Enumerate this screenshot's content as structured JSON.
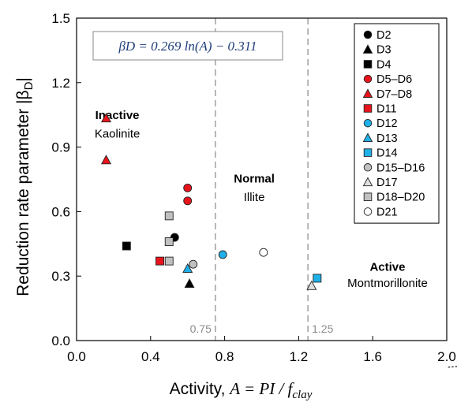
{
  "chart_data": {
    "type": "scatter",
    "xlim": [
      0,
      2.0
    ],
    "ylim": [
      0,
      1.5
    ],
    "x_ticks": [
      "0.0",
      "0.4",
      "0.8",
      "1.2",
      "1.6",
      "2.0"
    ],
    "y_ticks": [
      "0.0",
      "0.3",
      "0.6",
      "0.9",
      "1.2",
      "1.5"
    ],
    "xlabel_prefix": "Activity, ",
    "xlabel_math": "A = PI / f",
    "xlabel_sub": "clay",
    "ylabel_prefix": "Reduction rate parameter |β",
    "ylabel_sub": "D",
    "ylabel_suffix": "|",
    "equation": "βD = 0.269 ln(A) − 0.311",
    "fit": {
      "a": 0.269,
      "b": -0.311
    },
    "vlines": [
      {
        "x": 0.75,
        "label": "0.75"
      },
      {
        "x": 1.25,
        "label": "1.25"
      }
    ],
    "regions": [
      {
        "bold": "Inactive",
        "normal": "Kaolinite",
        "x": 0.22,
        "y_bold": 1.03,
        "y_normal": 0.945
      },
      {
        "bold": "Normal",
        "normal": "Illite",
        "x": 0.96,
        "y_bold": 0.735,
        "y_normal": 0.65
      },
      {
        "bold": "Active",
        "normal": "Montmorillonite",
        "x": 1.68,
        "y_bold": 0.325,
        "y_normal": 0.25
      }
    ],
    "series": [
      {
        "name": "D2",
        "marker": "circle",
        "color": "#000000",
        "points": [
          [
            0.53,
            0.48
          ]
        ]
      },
      {
        "name": "D3",
        "marker": "triangle",
        "color": "#000000",
        "points": [
          [
            0.61,
            0.265
          ]
        ]
      },
      {
        "name": "D4",
        "marker": "square",
        "color": "#000000",
        "points": [
          [
            0.27,
            0.44
          ]
        ]
      },
      {
        "name": "D5–D6",
        "marker": "circle",
        "color": "#e8141c",
        "points": [
          [
            0.6,
            0.71
          ],
          [
            0.6,
            0.65
          ]
        ]
      },
      {
        "name": "D7–D8",
        "marker": "triangle",
        "color": "#e8141c",
        "points": [
          [
            0.16,
            1.035
          ],
          [
            0.16,
            0.84
          ]
        ]
      },
      {
        "name": "D11",
        "marker": "square",
        "color": "#e8141c",
        "points": [
          [
            0.45,
            0.37
          ]
        ]
      },
      {
        "name": "D12",
        "marker": "circle",
        "color": "#20b0e8",
        "points": [
          [
            0.79,
            0.4
          ]
        ]
      },
      {
        "name": "D13",
        "marker": "triangle",
        "color": "#20b0e8",
        "points": [
          [
            0.6,
            0.335
          ]
        ]
      },
      {
        "name": "D14",
        "marker": "square",
        "color": "#20b0e8",
        "points": [
          [
            1.3,
            0.29
          ]
        ]
      },
      {
        "name": "D15–D16",
        "marker": "circle",
        "color": "#c0c0c0",
        "points": [
          [
            0.63,
            0.355
          ]
        ]
      },
      {
        "name": "D17",
        "marker": "triangle",
        "color": "#e0e0e0",
        "points": [
          [
            1.27,
            0.255
          ]
        ]
      },
      {
        "name": "D18–D20",
        "marker": "square",
        "color": "#c0c0c0",
        "points": [
          [
            0.5,
            0.58
          ],
          [
            0.5,
            0.46
          ],
          [
            0.5,
            0.37
          ]
        ]
      },
      {
        "name": "D21",
        "marker": "circle",
        "color": "#ffffff",
        "points": [
          [
            1.01,
            0.41
          ]
        ]
      }
    ],
    "grid": false,
    "legend_position": "top-right"
  }
}
